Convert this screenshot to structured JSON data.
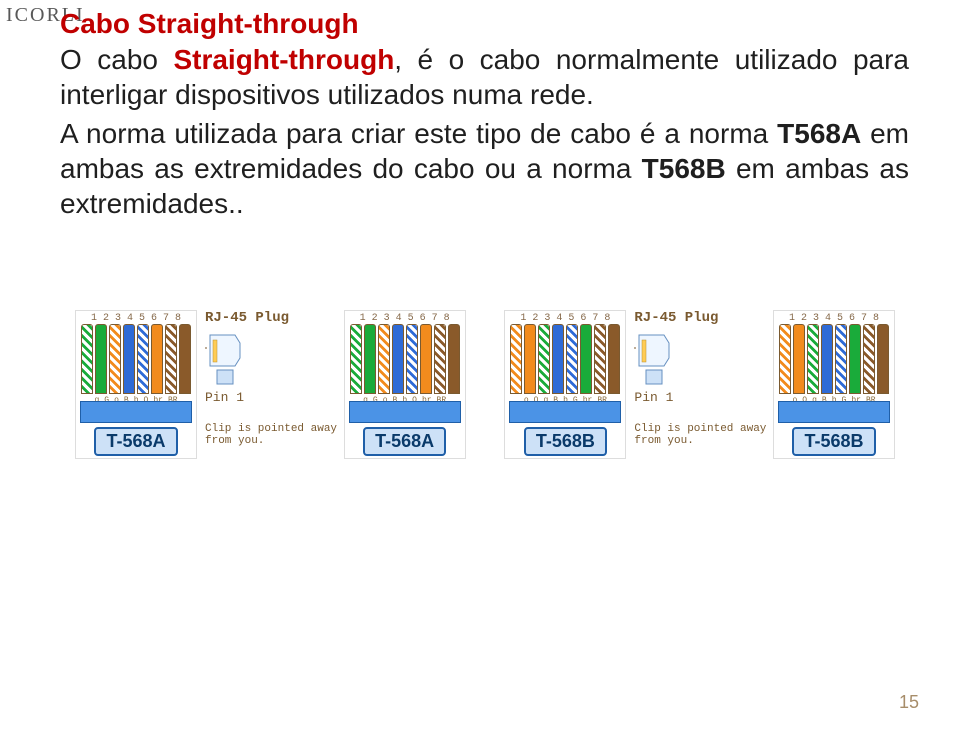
{
  "header": {
    "logo": "ICORLI"
  },
  "title": "Cabo Straight-through",
  "para1": {
    "lead": "O cabo ",
    "boldred": "Straight-through",
    "tail": ", é o cabo normalmente utilizado para interligar dispositivos utilizados numa rede."
  },
  "para2": {
    "lead": "A norma utilizada para criar este tipo de cabo é a norma ",
    "b1": "T568A",
    "mid1": " em ambas as extremidades do cabo ou a norma ",
    "b2": "T568B",
    "mid2": " em ambas as extremidades.",
    "tail": "."
  },
  "rj45": "RJ-45 Plug",
  "pin1": "Pin 1",
  "clip": "Clip is pointed\naway from you.",
  "std568a": "T-568A",
  "std568b": "T-568B",
  "pins": [
    "1",
    "2",
    "3",
    "4",
    "5",
    "6",
    "7",
    "8"
  ],
  "letters_a": [
    "g",
    "G",
    "o",
    "B",
    "b",
    "O",
    "br",
    "BR"
  ],
  "letters_b": [
    "o",
    "O",
    "g",
    "B",
    "b",
    "G",
    "br",
    "BR"
  ],
  "page_number": "15",
  "wires_a": [
    "w-green-stripe",
    "w-green",
    "w-orange-stripe",
    "w-blue",
    "w-blue-stripe",
    "w-orange",
    "w-brown-stripe",
    "w-brown"
  ],
  "wires_b": [
    "w-orange-stripe",
    "w-orange",
    "w-green-stripe",
    "w-blue",
    "w-blue-stripe",
    "w-green",
    "w-brown-stripe",
    "w-brown"
  ]
}
